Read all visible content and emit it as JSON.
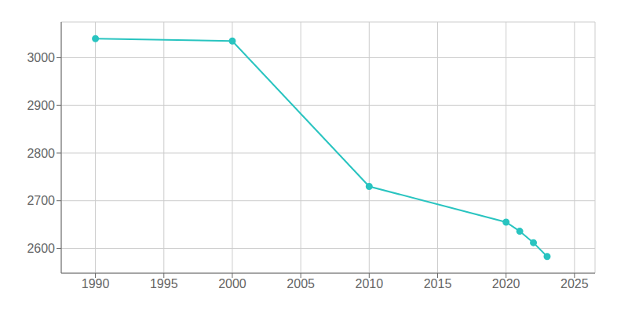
{
  "chart_data": {
    "type": "line",
    "x": [
      1990,
      2000,
      2010,
      2020,
      2021,
      2022,
      2023
    ],
    "values": [
      3040,
      3035,
      2730,
      2655,
      2636,
      2612,
      2583
    ],
    "color": "#29C4C0",
    "marker": "circle",
    "xlim": [
      1987.5,
      2026.5
    ],
    "ylim": [
      2548,
      3075
    ],
    "xticks": [
      1990,
      1995,
      2000,
      2005,
      2010,
      2015,
      2020,
      2025
    ],
    "yticks": [
      2600,
      2700,
      2800,
      2900,
      3000
    ],
    "grid": true
  }
}
